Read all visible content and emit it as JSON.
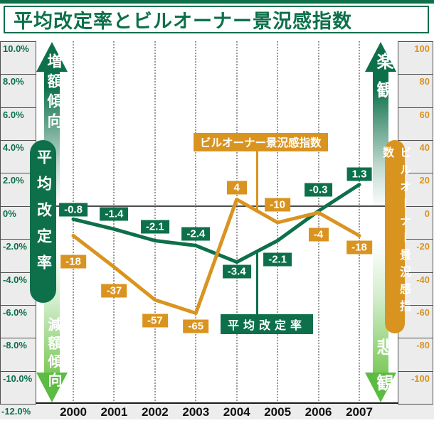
{
  "title": "平均改定率とビルオーナー景況感指数",
  "left_axis": {
    "labels": [
      "10.0%",
      "8.0%",
      "6.0%",
      "4.0%",
      "2.0%",
      "0%",
      "-2.0%",
      "-4.0%",
      "-6.0%",
      "-8.0%",
      "-10.0%",
      "-12.0%"
    ],
    "trend_up": "増額傾向",
    "trend_down": "減額傾向",
    "pill": "平均改定率"
  },
  "right_axis": {
    "labels": [
      "100",
      "80",
      "60",
      "40",
      "20",
      "0",
      "-20",
      "-40",
      "-60",
      "-80",
      "-100"
    ],
    "trend_up": "楽観",
    "trend_down": "悲観",
    "pill": "ビルオーナー景況感指数"
  },
  "colors": {
    "dark_green": "#0d704b",
    "orange": "#d99420",
    "bright_green": "#5cbb42",
    "grid_dots": "#999999",
    "zero_line": "#4d4d4d",
    "axis_cell_bg": "#ececec"
  },
  "chart_data": {
    "type": "line",
    "categories": [
      "2000",
      "2001",
      "2002",
      "2003",
      "2004",
      "2005",
      "2006",
      "2007"
    ],
    "series": [
      {
        "name": "平均改定率",
        "axis": "left",
        "color": "#0d704b",
        "values": [
          -0.8,
          -1.4,
          -2.1,
          -2.4,
          -3.4,
          -2.1,
          -0.3,
          1.3
        ],
        "label_dy": [
          -13,
          -21,
          -19,
          -16,
          13,
          27,
          -30,
          -15
        ]
      },
      {
        "name": "ビルオーナー景況感指数",
        "axis": "right",
        "color": "#d99420",
        "values": [
          -18,
          -37,
          -57,
          -65,
          4,
          -10,
          -4,
          -18
        ],
        "label_dy": [
          36,
          33,
          29,
          19,
          -17,
          -25,
          31,
          16
        ]
      }
    ],
    "left_ylim": [
      -12,
      10
    ],
    "right_ylim": [
      -100,
      100
    ],
    "grid": "vertical-dotted",
    "zero_line": true,
    "legend_position": "inline-callouts"
  }
}
